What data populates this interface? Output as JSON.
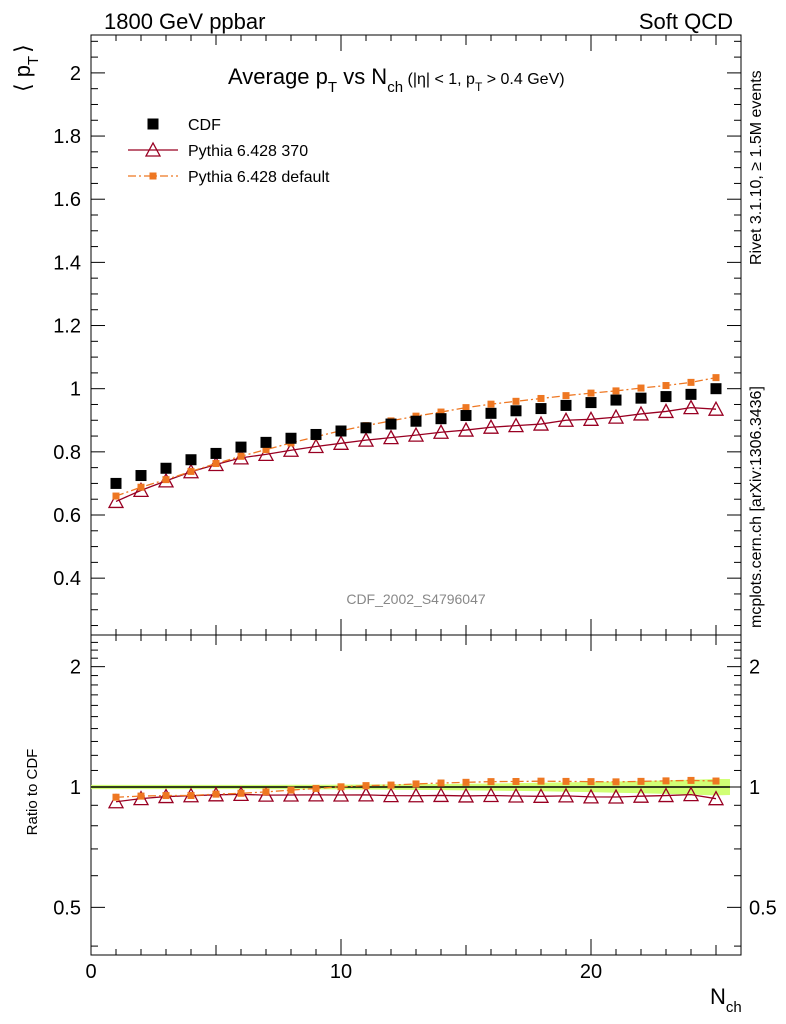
{
  "header": {
    "left": "1800 GeV ppbar",
    "right": "Soft QCD"
  },
  "side_texts": {
    "rivet": "Rivet 3.1.10, ≥ 1.5M events",
    "mcplots": "mcplots.cern.ch [arXiv:1306.3436]"
  },
  "watermark": "CDF_2002_S4796047",
  "chart_data": {
    "type": "scatter",
    "title": {
      "main": "Average p",
      "main_sub": "T",
      "vs": " vs N",
      "vs_sub": "ch",
      "cut_a": " (|η| < 1, p",
      "cut_sub": "T",
      "cut_b": " > 0.4 GeV)"
    },
    "ylabel": {
      "open": "⟨ p",
      "sub": "T",
      "close": "⟩"
    },
    "xlabel": {
      "main": "N",
      "sub": "ch"
    },
    "ratio_ylabel": "Ratio to CDF",
    "main_panel": {
      "ylim": [
        0.22,
        2.12
      ],
      "yticks": [
        0.4,
        0.6,
        0.8,
        1.0,
        1.2,
        1.4,
        1.6,
        1.8,
        2.0
      ],
      "ytick_labels": [
        "0.4",
        "0.6",
        "0.8",
        "1",
        "1.2",
        "1.4",
        "1.6",
        "1.8",
        "2"
      ]
    },
    "ratio_panel": {
      "ylim": [
        0.38,
        2.4
      ],
      "scale": "log",
      "yticks": [
        0.5,
        1.0,
        2.0
      ],
      "ytick_labels": [
        "0.5",
        "1",
        "2"
      ]
    },
    "xlim": [
      0,
      26
    ],
    "xticks": [
      0,
      10,
      20
    ],
    "xtick_labels": [
      "0",
      "10",
      "20"
    ],
    "x": [
      1,
      2,
      3,
      4,
      5,
      6,
      7,
      8,
      9,
      10,
      11,
      12,
      13,
      14,
      15,
      16,
      17,
      18,
      19,
      20,
      21,
      22,
      23,
      24,
      25
    ],
    "legend_position": "top-left",
    "series": [
      {
        "name": "CDF",
        "color": "#000000",
        "marker": "filled-square",
        "values": [
          0.7,
          0.725,
          0.748,
          0.775,
          0.795,
          0.815,
          0.83,
          0.843,
          0.855,
          0.866,
          0.876,
          0.888,
          0.897,
          0.905,
          0.915,
          0.922,
          0.93,
          0.937,
          0.947,
          0.956,
          0.964,
          0.97,
          0.975,
          0.982,
          1.0
        ]
      },
      {
        "name": "Pythia 6.428 370",
        "color": "#990022",
        "marker": "open-triangle",
        "line": "solid",
        "values": [
          0.643,
          0.678,
          0.708,
          0.737,
          0.76,
          0.781,
          0.792,
          0.805,
          0.817,
          0.827,
          0.837,
          0.845,
          0.853,
          0.862,
          0.869,
          0.878,
          0.883,
          0.888,
          0.9,
          0.903,
          0.91,
          0.92,
          0.928,
          0.94,
          0.935
        ]
      },
      {
        "name": "Pythia 6.428 default",
        "color": "#ee7722",
        "marker": "filled-small-square",
        "line": "dash-dot",
        "values": [
          0.66,
          0.688,
          0.712,
          0.738,
          0.763,
          0.786,
          0.807,
          0.828,
          0.848,
          0.867,
          0.883,
          0.898,
          0.913,
          0.926,
          0.94,
          0.951,
          0.96,
          0.969,
          0.978,
          0.986,
          0.993,
          1.002,
          1.01,
          1.02,
          1.035
        ]
      }
    ],
    "data_band_color": "#ccff66"
  }
}
